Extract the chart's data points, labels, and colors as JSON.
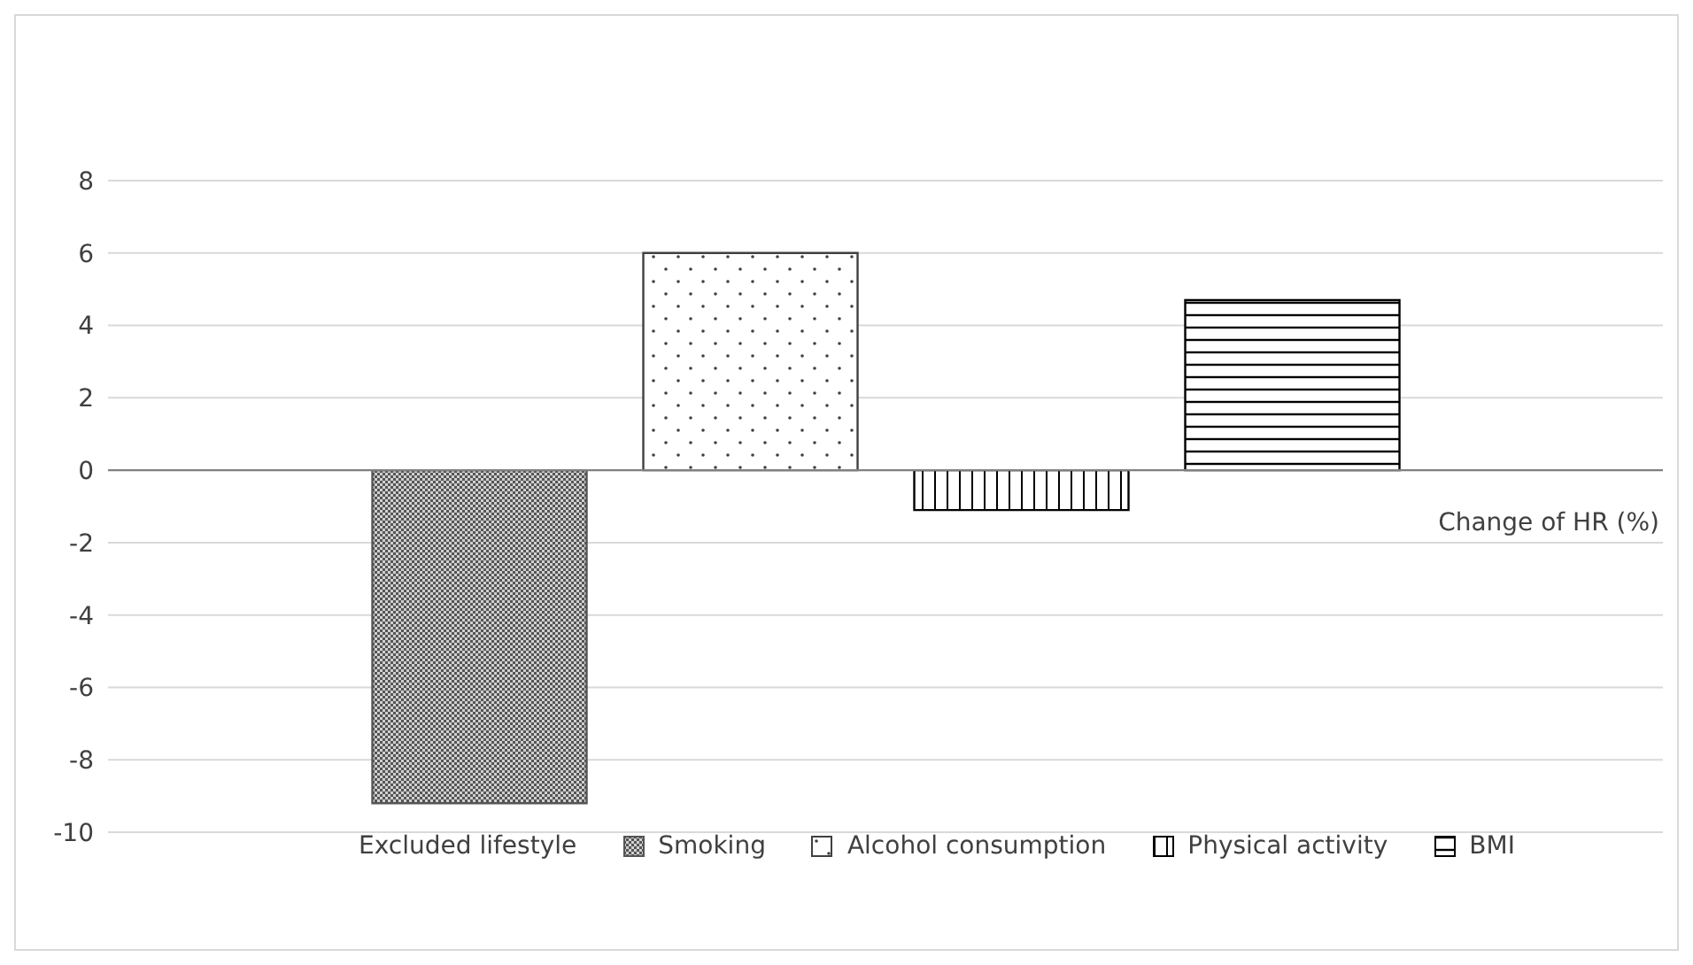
{
  "chart_data": {
    "type": "bar",
    "categories": [
      null
    ],
    "ylabel": "Change of HR (%)",
    "legend_title": "Excluded lifestyle",
    "series": [
      {
        "name": "Smoking",
        "color": "#555555",
        "values": [
          -9.2
        ]
      },
      {
        "name": "Alcohol consumption",
        "color": "#404040",
        "values": [
          6.0
        ]
      },
      {
        "name": "Physical activity",
        "color": "#000000",
        "values": [
          -1.1
        ]
      },
      {
        "name": "BMI",
        "color": "#000000",
        "values": [
          4.7
        ]
      }
    ],
    "ylim": [
      -10,
      8
    ],
    "yticks": [
      -10,
      -8,
      -6,
      -4,
      -2,
      0,
      2,
      4,
      6,
      8
    ],
    "grid": "y",
    "legend": "bottom"
  }
}
